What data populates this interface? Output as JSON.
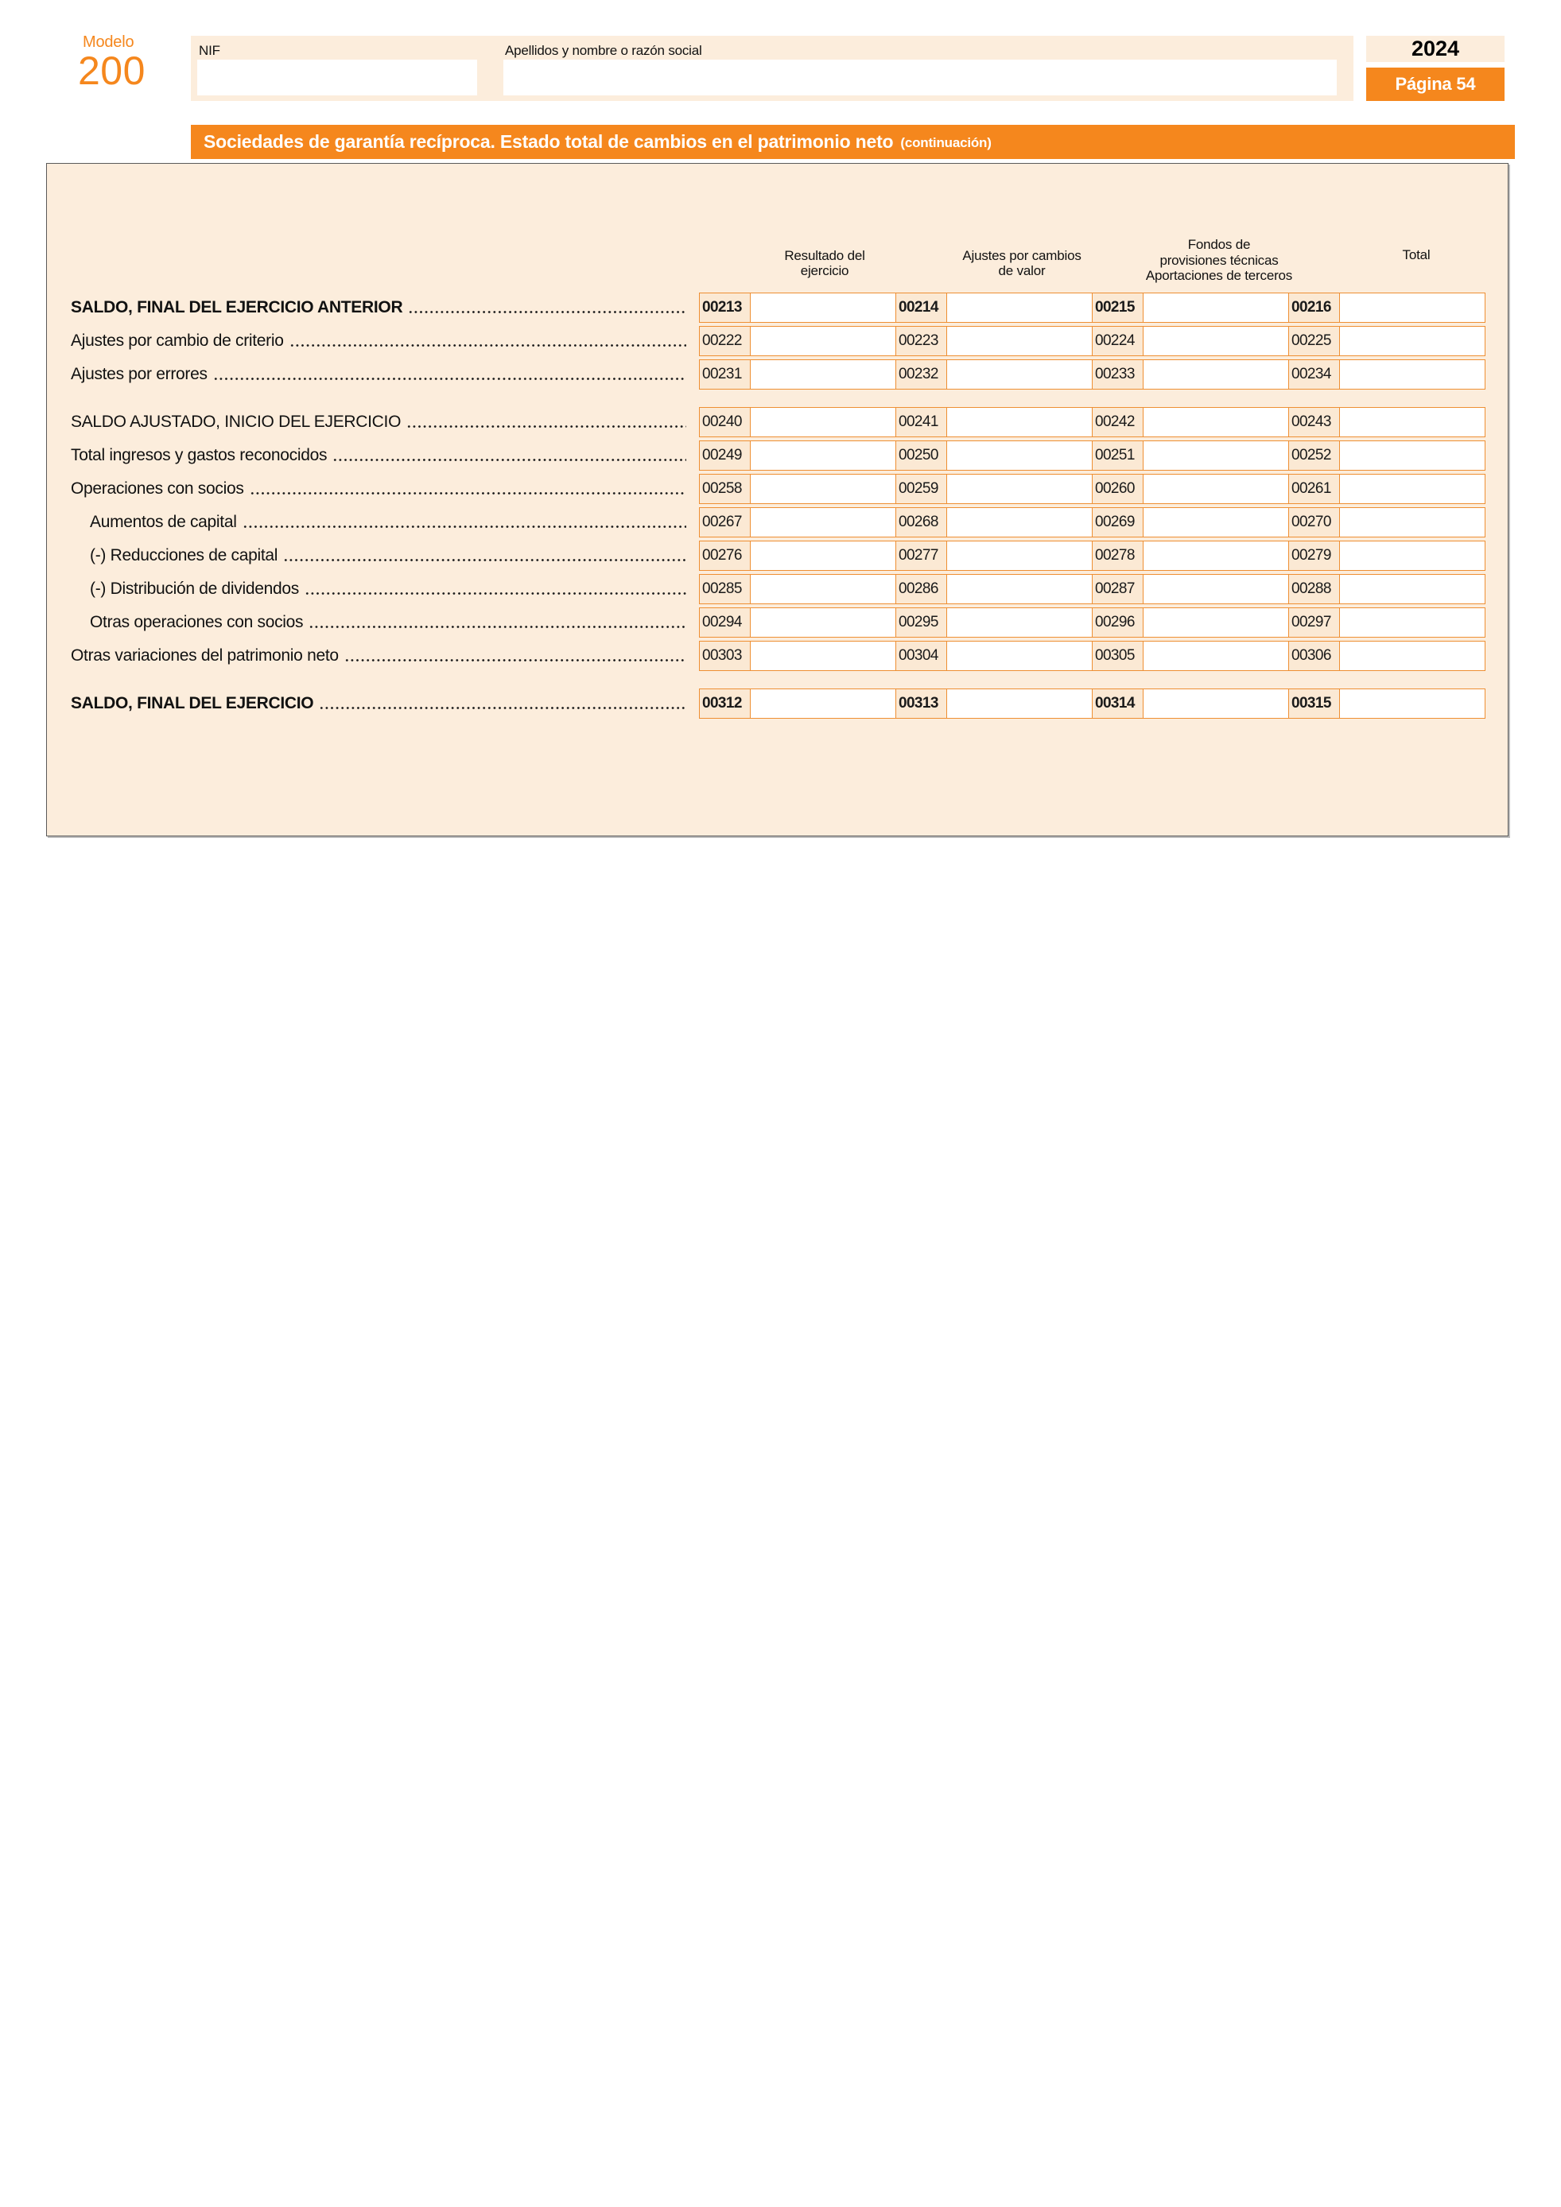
{
  "header": {
    "model_label": "Modelo",
    "model_number": "200",
    "nif_label": "NIF",
    "nif_value": "",
    "name_label": "Apellidos y nombre o razón social",
    "name_value": "",
    "year": "2024",
    "page_badge": "Página 54"
  },
  "section": {
    "title": "Sociedades de garantía recíproca. Estado total de cambios en el patrimonio neto",
    "title_note": "(continuación)"
  },
  "table": {
    "column_headers": [
      "Resultado del\nejercicio",
      "Ajustes por cambios\nde valor",
      "Fondos de\nprovisiones técnicas\nAportaciones de terceros",
      "Total"
    ],
    "groups": [
      {
        "rows": [
          {
            "label": "SALDO, FINAL DEL EJERCICIO ANTERIOR",
            "style": "bold",
            "codes": [
              "00213",
              "00214",
              "00215",
              "00216"
            ],
            "values": [
              "",
              "",
              "",
              ""
            ]
          },
          {
            "label": "Ajustes por cambio de criterio",
            "style": "normal",
            "codes": [
              "00222",
              "00223",
              "00224",
              "00225"
            ],
            "values": [
              "",
              "",
              "",
              ""
            ]
          },
          {
            "label": "Ajustes por errores",
            "style": "normal",
            "codes": [
              "00231",
              "00232",
              "00233",
              "00234"
            ],
            "values": [
              "",
              "",
              "",
              ""
            ]
          }
        ]
      },
      {
        "rows": [
          {
            "label": "SALDO AJUSTADO, INICIO DEL EJERCICIO",
            "style": "normal",
            "codes": [
              "00240",
              "00241",
              "00242",
              "00243"
            ],
            "values": [
              "",
              "",
              "",
              ""
            ]
          },
          {
            "label": "Total ingresos y gastos reconocidos",
            "style": "normal",
            "codes": [
              "00249",
              "00250",
              "00251",
              "00252"
            ],
            "values": [
              "",
              "",
              "",
              ""
            ]
          },
          {
            "label": "Operaciones con socios",
            "style": "normal",
            "codes": [
              "00258",
              "00259",
              "00260",
              "00261"
            ],
            "values": [
              "",
              "",
              "",
              ""
            ]
          },
          {
            "label": "Aumentos de capital",
            "style": "indent",
            "codes": [
              "00267",
              "00268",
              "00269",
              "00270"
            ],
            "values": [
              "",
              "",
              "",
              ""
            ]
          },
          {
            "label": "(-) Reducciones de capital",
            "style": "indent",
            "codes": [
              "00276",
              "00277",
              "00278",
              "00279"
            ],
            "values": [
              "",
              "",
              "",
              ""
            ]
          },
          {
            "label": "(-) Distribución de dividendos",
            "style": "indent",
            "codes": [
              "00285",
              "00286",
              "00287",
              "00288"
            ],
            "values": [
              "",
              "",
              "",
              ""
            ]
          },
          {
            "label": "Otras operaciones con socios",
            "style": "indent",
            "codes": [
              "00294",
              "00295",
              "00296",
              "00297"
            ],
            "values": [
              "",
              "",
              "",
              ""
            ]
          },
          {
            "label": "Otras variaciones del patrimonio neto",
            "style": "normal",
            "codes": [
              "00303",
              "00304",
              "00305",
              "00306"
            ],
            "values": [
              "",
              "",
              "",
              ""
            ]
          }
        ]
      },
      {
        "rows": [
          {
            "label": "SALDO, FINAL DEL EJERCICIO",
            "style": "bold",
            "codes": [
              "00312",
              "00313",
              "00314",
              "00315"
            ],
            "values": [
              "",
              "",
              "",
              ""
            ]
          }
        ]
      }
    ]
  },
  "colors": {
    "accent_orange": "#F5871D",
    "cell_border_orange": "#EE8F33",
    "panel_peach": "#FCEDDC",
    "code_box_peach": "#FBE9D4",
    "text": "#161616"
  }
}
